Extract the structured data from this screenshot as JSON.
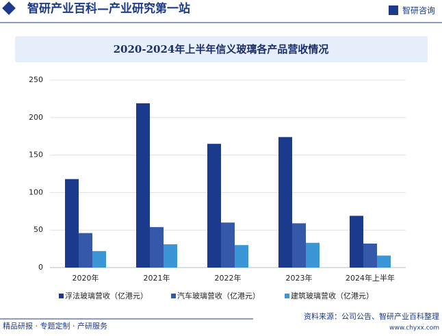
{
  "header": {
    "title": "智研产业百科—产业研究第一站",
    "logo": "智研咨询"
  },
  "chart_data": {
    "type": "bar",
    "title": "2020-2024年上半年信义玻璃各产品营收情况",
    "categories": [
      "2020年",
      "2021年",
      "2022年",
      "2023年",
      "2024年上半年"
    ],
    "series": [
      {
        "name": "浮法玻璃营收（亿港元）",
        "color": "#1b3a8c",
        "values": [
          118,
          219,
          165,
          174,
          69
        ]
      },
      {
        "name": "汽车玻璃营收（亿港元）",
        "color": "#3558a9",
        "values": [
          46,
          54,
          60,
          59,
          32
        ]
      },
      {
        "name": "建筑玻璃营收（亿港元）",
        "color": "#3a96d6",
        "values": [
          22,
          31,
          30,
          33,
          16
        ]
      }
    ],
    "ylim": [
      0,
      250
    ],
    "yticks": [
      0,
      50,
      100,
      150,
      200,
      250
    ],
    "grid": true
  },
  "footer": {
    "left": "精品研报 · 专题定制 · 产研服务",
    "source": "资料来源：公司公告、智研产业百科整理",
    "url": "www.chyxx.com"
  }
}
